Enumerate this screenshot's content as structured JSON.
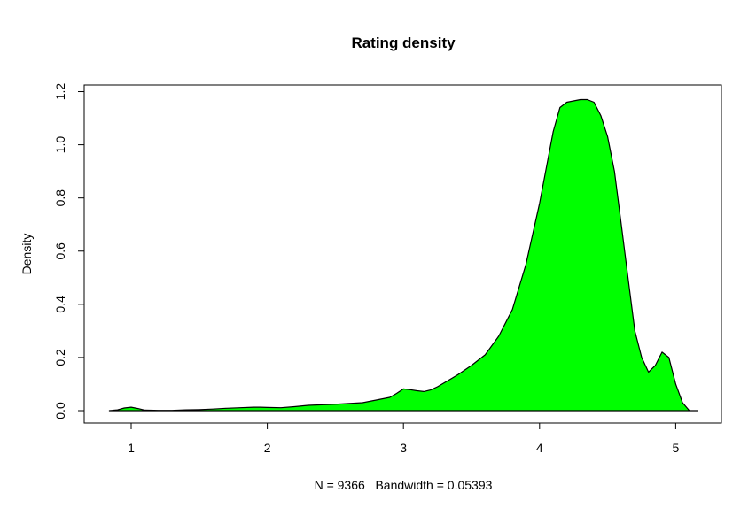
{
  "chart_data": {
    "type": "area",
    "title": "Rating density",
    "xlabel": "N = 9366   Bandwidth = 0.05393",
    "ylabel": "Density",
    "xlim": [
      0.8,
      5.2
    ],
    "ylim": [
      0.0,
      1.2
    ],
    "x_ticks": [
      "1",
      "2",
      "3",
      "4",
      "5"
    ],
    "y_ticks": [
      "0.0",
      "0.2",
      "0.4",
      "0.6",
      "0.8",
      "1.0",
      "1.2"
    ],
    "fill_color": "#00ff00",
    "line_color": "#000000",
    "series": [
      {
        "x": [
          0.84,
          0.9,
          0.95,
          1.0,
          1.05,
          1.1,
          1.2,
          1.3,
          1.4,
          1.5,
          1.6,
          1.7,
          1.8,
          1.9,
          1.95,
          2.0,
          2.1,
          2.2,
          2.3,
          2.4,
          2.5,
          2.6,
          2.7,
          2.8,
          2.9,
          2.95,
          3.0,
          3.05,
          3.1,
          3.15,
          3.2,
          3.25,
          3.3,
          3.4,
          3.5,
          3.6,
          3.7,
          3.8,
          3.9,
          4.0,
          4.1,
          4.15,
          4.2,
          4.25,
          4.3,
          4.35,
          4.4,
          4.45,
          4.5,
          4.55,
          4.6,
          4.65,
          4.7,
          4.75,
          4.8,
          4.85,
          4.9,
          4.95,
          5.0,
          5.05,
          5.1,
          5.16
        ],
        "y": [
          0.0,
          0.003,
          0.01,
          0.013,
          0.008,
          0.002,
          0.001,
          0.001,
          0.003,
          0.004,
          0.006,
          0.009,
          0.011,
          0.013,
          0.013,
          0.012,
          0.011,
          0.015,
          0.02,
          0.022,
          0.024,
          0.027,
          0.03,
          0.04,
          0.05,
          0.065,
          0.082,
          0.079,
          0.075,
          0.072,
          0.078,
          0.09,
          0.105,
          0.135,
          0.17,
          0.21,
          0.28,
          0.38,
          0.55,
          0.78,
          1.05,
          1.14,
          1.16,
          1.165,
          1.17,
          1.17,
          1.16,
          1.11,
          1.03,
          0.9,
          0.7,
          0.5,
          0.3,
          0.2,
          0.145,
          0.17,
          0.22,
          0.2,
          0.1,
          0.03,
          0.0,
          0.0
        ]
      }
    ]
  }
}
